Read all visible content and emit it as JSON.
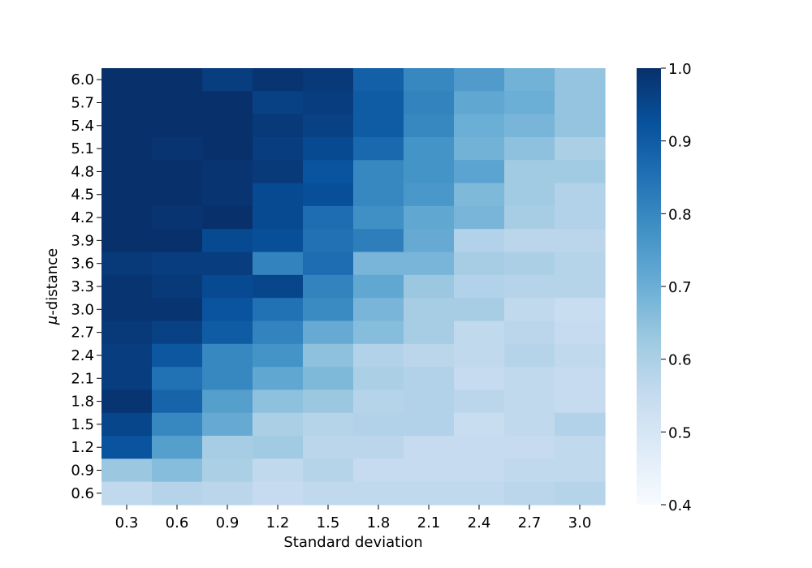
{
  "chart_data": {
    "type": "heatmap",
    "title": "",
    "xlabel": "Standard deviation",
    "ylabel_prefix": "μ",
    "ylabel_suffix": "-distance",
    "x_categories": [
      "0.3",
      "0.6",
      "0.9",
      "1.2",
      "1.5",
      "1.8",
      "2.1",
      "2.4",
      "2.7",
      "3.0"
    ],
    "y_categories": [
      "6.0",
      "5.7",
      "5.4",
      "5.1",
      "4.8",
      "4.5",
      "4.2",
      "3.9",
      "3.6",
      "3.3",
      "3.0",
      "2.7",
      "2.4",
      "2.1",
      "1.8",
      "1.5",
      "1.2",
      "0.9",
      "0.6"
    ],
    "values": [
      [
        1.0,
        1.0,
        0.97,
        0.99,
        0.98,
        0.89,
        0.8,
        0.75,
        0.69,
        0.64
      ],
      [
        1.0,
        1.0,
        1.0,
        0.96,
        0.97,
        0.9,
        0.81,
        0.72,
        0.7,
        0.64
      ],
      [
        1.0,
        1.0,
        1.0,
        0.98,
        0.96,
        0.9,
        0.8,
        0.7,
        0.68,
        0.64
      ],
      [
        1.0,
        0.99,
        1.0,
        0.97,
        0.94,
        0.87,
        0.77,
        0.69,
        0.65,
        0.6
      ],
      [
        1.0,
        1.0,
        0.99,
        0.98,
        0.92,
        0.8,
        0.77,
        0.73,
        0.62,
        0.62
      ],
      [
        1.0,
        1.0,
        0.99,
        0.94,
        0.93,
        0.8,
        0.76,
        0.67,
        0.62,
        0.59
      ],
      [
        1.0,
        0.99,
        1.0,
        0.94,
        0.86,
        0.78,
        0.72,
        0.68,
        0.61,
        0.59
      ],
      [
        1.0,
        1.0,
        0.94,
        0.93,
        0.85,
        0.82,
        0.71,
        0.59,
        0.57,
        0.57
      ],
      [
        0.98,
        0.97,
        0.97,
        0.81,
        0.86,
        0.68,
        0.68,
        0.61,
        0.6,
        0.58
      ],
      [
        0.99,
        0.98,
        0.94,
        0.95,
        0.81,
        0.72,
        0.63,
        0.59,
        0.58,
        0.58
      ],
      [
        0.99,
        0.99,
        0.92,
        0.85,
        0.79,
        0.68,
        0.61,
        0.61,
        0.56,
        0.54
      ],
      [
        0.98,
        0.96,
        0.9,
        0.81,
        0.71,
        0.66,
        0.61,
        0.56,
        0.57,
        0.55
      ],
      [
        0.97,
        0.91,
        0.8,
        0.77,
        0.65,
        0.59,
        0.57,
        0.56,
        0.58,
        0.56
      ],
      [
        0.97,
        0.85,
        0.8,
        0.72,
        0.67,
        0.6,
        0.59,
        0.55,
        0.56,
        0.55
      ],
      [
        0.99,
        0.88,
        0.74,
        0.65,
        0.63,
        0.58,
        0.59,
        0.57,
        0.56,
        0.55
      ],
      [
        0.95,
        0.8,
        0.71,
        0.6,
        0.58,
        0.59,
        0.59,
        0.54,
        0.56,
        0.59
      ],
      [
        0.92,
        0.74,
        0.61,
        0.62,
        0.57,
        0.57,
        0.55,
        0.55,
        0.55,
        0.56
      ],
      [
        0.63,
        0.66,
        0.6,
        0.56,
        0.58,
        0.55,
        0.55,
        0.55,
        0.56,
        0.56
      ],
      [
        0.56,
        0.58,
        0.57,
        0.55,
        0.56,
        0.56,
        0.56,
        0.56,
        0.57,
        0.58
      ]
    ],
    "colorbar": {
      "min": 0.4,
      "max": 1.0,
      "ticks": [
        "0.4",
        "0.5",
        "0.6",
        "0.7",
        "0.8",
        "0.9",
        "1.0"
      ],
      "colormap": "Blues",
      "colors": [
        "#f7fbff",
        "#deebf7",
        "#c6dbef",
        "#9ecae1",
        "#6baed6",
        "#4292c6",
        "#2171b5",
        "#08519c",
        "#08306b"
      ]
    },
    "grid": false,
    "legend": "colorbar-right"
  }
}
